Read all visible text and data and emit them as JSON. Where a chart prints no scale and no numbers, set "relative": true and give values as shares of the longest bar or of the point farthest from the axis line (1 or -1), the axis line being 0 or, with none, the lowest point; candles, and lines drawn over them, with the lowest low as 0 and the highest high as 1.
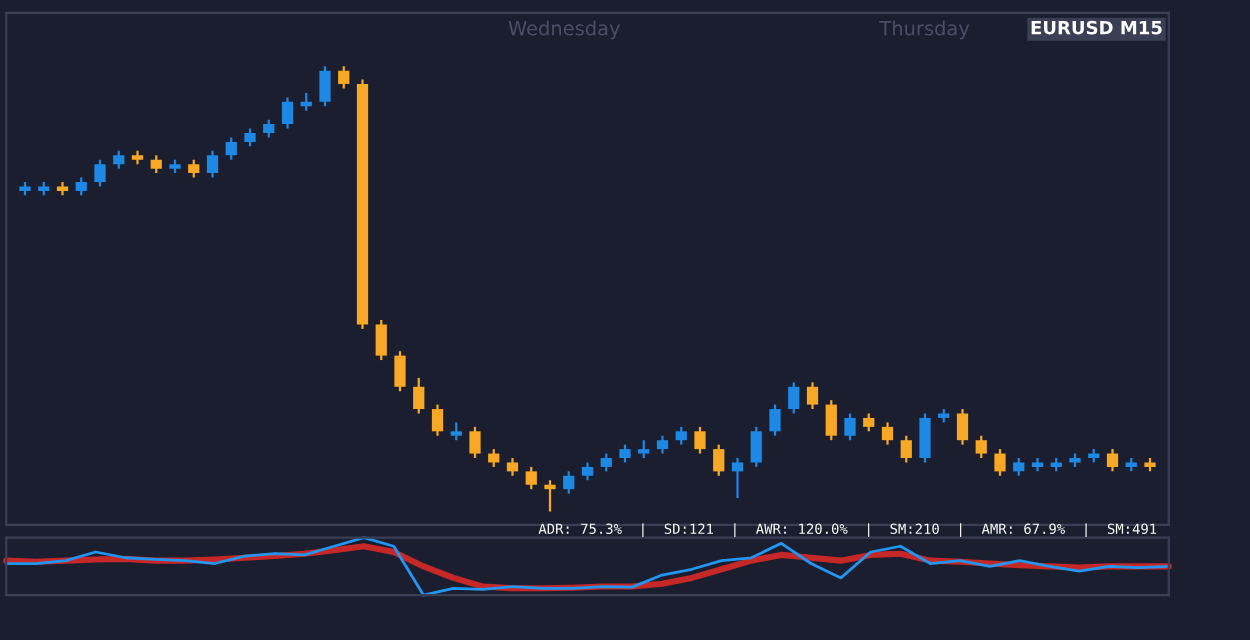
{
  "chart_data": [
    {
      "type": "candlestick",
      "title": "EURUSD M15",
      "relative": true,
      "annotations": [
        "Wednesday",
        "Thursday"
      ],
      "categories": [
        null,
        null,
        null,
        null,
        null,
        null,
        null,
        null,
        null,
        null,
        null,
        null,
        null,
        null,
        null,
        null,
        null,
        null,
        null,
        null,
        null,
        null,
        null,
        null,
        null,
        null,
        null,
        null,
        null,
        null,
        null,
        null,
        null,
        null,
        null,
        null,
        null,
        null,
        null,
        null,
        null,
        null,
        null,
        null,
        null,
        null,
        null,
        null,
        null,
        null,
        null,
        null,
        null,
        null,
        null,
        null,
        null,
        null,
        null,
        null,
        null
      ],
      "ohlc": [
        [
          0.72,
          0.74,
          0.71,
          0.73
        ],
        [
          0.72,
          0.74,
          0.71,
          0.73
        ],
        [
          0.73,
          0.74,
          0.71,
          0.72
        ],
        [
          0.72,
          0.75,
          0.71,
          0.74
        ],
        [
          0.74,
          0.79,
          0.73,
          0.78
        ],
        [
          0.78,
          0.81,
          0.77,
          0.8
        ],
        [
          0.8,
          0.81,
          0.78,
          0.79
        ],
        [
          0.79,
          0.8,
          0.76,
          0.77
        ],
        [
          0.77,
          0.79,
          0.76,
          0.78
        ],
        [
          0.78,
          0.79,
          0.75,
          0.76
        ],
        [
          0.76,
          0.81,
          0.75,
          0.8
        ],
        [
          0.8,
          0.84,
          0.79,
          0.83
        ],
        [
          0.83,
          0.86,
          0.82,
          0.85
        ],
        [
          0.85,
          0.88,
          0.84,
          0.87
        ],
        [
          0.87,
          0.93,
          0.86,
          0.92
        ],
        [
          0.91,
          0.94,
          0.9,
          0.92
        ],
        [
          0.92,
          1.0,
          0.91,
          0.99
        ],
        [
          0.99,
          1.0,
          0.95,
          0.96
        ],
        [
          0.96,
          0.97,
          0.41,
          0.42
        ],
        [
          0.42,
          0.43,
          0.34,
          0.35
        ],
        [
          0.35,
          0.36,
          0.27,
          0.28
        ],
        [
          0.28,
          0.3,
          0.22,
          0.23
        ],
        [
          0.23,
          0.24,
          0.17,
          0.18
        ],
        [
          0.17,
          0.2,
          0.16,
          0.18
        ],
        [
          0.18,
          0.19,
          0.12,
          0.13
        ],
        [
          0.13,
          0.14,
          0.1,
          0.11
        ],
        [
          0.11,
          0.12,
          0.08,
          0.09
        ],
        [
          0.09,
          0.1,
          0.05,
          0.06
        ],
        [
          0.06,
          0.07,
          0.0,
          0.05
        ],
        [
          0.05,
          0.09,
          0.04,
          0.08
        ],
        [
          0.08,
          0.11,
          0.07,
          0.1
        ],
        [
          0.1,
          0.13,
          0.09,
          0.12
        ],
        [
          0.12,
          0.15,
          0.11,
          0.14
        ],
        [
          0.13,
          0.16,
          0.12,
          0.14
        ],
        [
          0.14,
          0.17,
          0.13,
          0.16
        ],
        [
          0.16,
          0.19,
          0.15,
          0.18
        ],
        [
          0.18,
          0.19,
          0.13,
          0.14
        ],
        [
          0.14,
          0.15,
          0.08,
          0.09
        ],
        [
          0.09,
          0.12,
          0.03,
          0.11
        ],
        [
          0.11,
          0.19,
          0.1,
          0.18
        ],
        [
          0.18,
          0.24,
          0.17,
          0.23
        ],
        [
          0.23,
          0.29,
          0.22,
          0.28
        ],
        [
          0.28,
          0.29,
          0.23,
          0.24
        ],
        [
          0.24,
          0.25,
          0.16,
          0.17
        ],
        [
          0.17,
          0.22,
          0.16,
          0.21
        ],
        [
          0.21,
          0.22,
          0.18,
          0.19
        ],
        [
          0.19,
          0.2,
          0.15,
          0.16
        ],
        [
          0.16,
          0.17,
          0.11,
          0.12
        ],
        [
          0.12,
          0.22,
          0.11,
          0.21
        ],
        [
          0.21,
          0.23,
          0.2,
          0.22
        ],
        [
          0.22,
          0.23,
          0.15,
          0.16
        ],
        [
          0.16,
          0.17,
          0.12,
          0.13
        ],
        [
          0.13,
          0.14,
          0.08,
          0.09
        ],
        [
          0.09,
          0.12,
          0.08,
          0.11
        ],
        [
          0.1,
          0.12,
          0.09,
          0.11
        ],
        [
          0.1,
          0.12,
          0.09,
          0.11
        ],
        [
          0.11,
          0.13,
          0.1,
          0.12
        ],
        [
          0.12,
          0.14,
          0.11,
          0.13
        ],
        [
          0.13,
          0.14,
          0.09,
          0.1
        ],
        [
          0.1,
          0.12,
          0.09,
          0.11
        ],
        [
          0.11,
          0.12,
          0.09,
          0.1
        ]
      ],
      "colors": [
        "#1e88e5",
        "#1e88e5",
        "#f9a825",
        "#1e88e5",
        "#1e88e5",
        "#1e88e5",
        "#f9a825",
        "#f9a825",
        "#1e88e5",
        "#f9a825",
        "#1e88e5",
        "#1e88e5",
        "#1e88e5",
        "#1e88e5",
        "#1e88e5",
        "#1e88e5",
        "#1e88e5",
        "#f9a825",
        "#f9a825",
        "#f9a825",
        "#f9a825",
        "#f9a825",
        "#f9a825",
        "#1e88e5",
        "#f9a825",
        "#f9a825",
        "#f9a825",
        "#f9a825",
        "#f9a825",
        "#1e88e5",
        "#1e88e5",
        "#1e88e5",
        "#1e88e5",
        "#1e88e5",
        "#1e88e5",
        "#1e88e5",
        "#f9a825",
        "#f9a825",
        "#1e88e5",
        "#1e88e5",
        "#1e88e5",
        "#1e88e5",
        "#f9a825",
        "#f9a825",
        "#1e88e5",
        "#f9a825",
        "#f9a825",
        "#f9a825",
        "#1e88e5",
        "#1e88e5",
        "#f9a825",
        "#f9a825",
        "#f9a825",
        "#1e88e5",
        "#1e88e5",
        "#1e88e5",
        "#1e88e5",
        "#1e88e5",
        "#f9a825",
        "#1e88e5",
        "#f9a825"
      ]
    },
    {
      "type": "line",
      "relative": true,
      "annotations": [
        "ADR: 75.3%  |  SD:121  |  AWR: 120.0%  |  SM:210  |  AMR: 67.9%  |  SM:491"
      ],
      "categories": [
        null,
        null,
        null,
        null,
        null,
        null,
        null,
        null,
        null,
        null,
        null,
        null,
        null,
        null,
        null,
        null,
        null,
        null,
        null,
        null,
        null,
        null,
        null,
        null,
        null,
        null,
        null,
        null,
        null,
        null,
        null,
        null,
        null,
        null,
        null,
        null,
        null,
        null,
        null,
        null
      ],
      "series": [
        {
          "color": "#c62828",
          "values": [
            0.6,
            0.58,
            0.6,
            0.62,
            0.63,
            0.6,
            0.6,
            0.62,
            0.65,
            0.68,
            0.72,
            0.78,
            0.85,
            0.75,
            0.5,
            0.3,
            0.15,
            0.12,
            0.12,
            0.13,
            0.15,
            0.15,
            0.2,
            0.3,
            0.45,
            0.6,
            0.7,
            0.65,
            0.6,
            0.7,
            0.72,
            0.6,
            0.58,
            0.55,
            0.52,
            0.5,
            0.48,
            0.5,
            0.5,
            0.5
          ]
        },
        {
          "color": "#2196f3",
          "values": [
            0.55,
            0.55,
            0.6,
            0.75,
            0.65,
            0.62,
            0.6,
            0.55,
            0.68,
            0.72,
            0.7,
            0.85,
            1.0,
            0.85,
            0.0,
            0.12,
            0.1,
            0.15,
            0.12,
            0.12,
            0.15,
            0.14,
            0.35,
            0.45,
            0.6,
            0.65,
            0.9,
            0.55,
            0.3,
            0.75,
            0.85,
            0.55,
            0.6,
            0.5,
            0.6,
            0.5,
            0.42,
            0.5,
            0.48,
            0.5
          ]
        }
      ]
    }
  ]
}
